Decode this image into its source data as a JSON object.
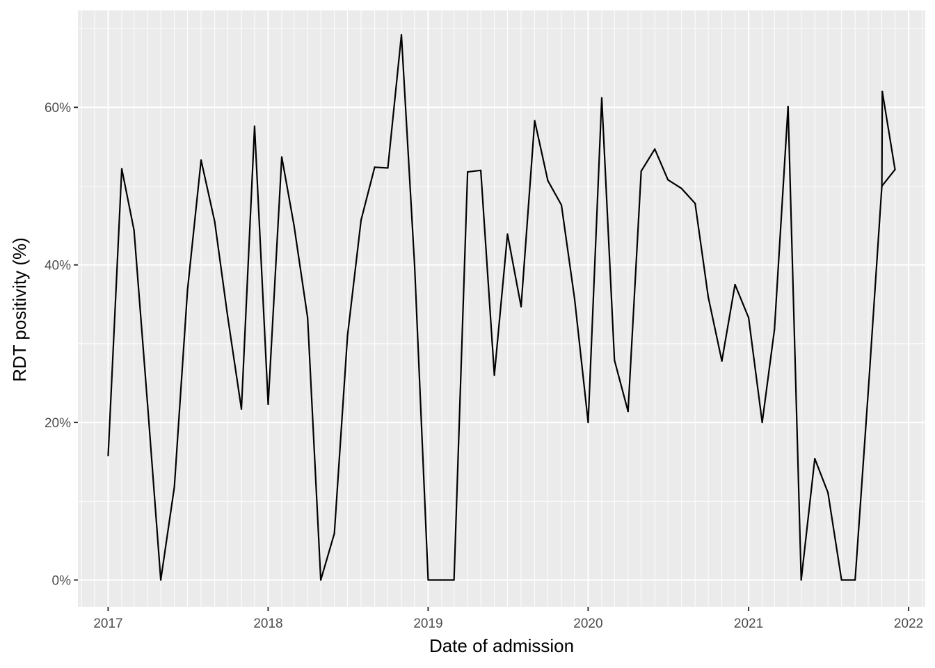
{
  "chart_data": {
    "type": "line",
    "xlabel": "Date of admission",
    "ylabel": "RDT positivity (%)",
    "x_ticks": [
      "2017",
      "2018",
      "2019",
      "2020",
      "2021",
      "2022"
    ],
    "y_ticks": [
      "0%",
      "20%",
      "40%",
      "60%"
    ],
    "y_tick_values": [
      0,
      20,
      40,
      60
    ],
    "xlim": [
      "2016-10-24",
      "2022-02-08"
    ],
    "ylim": [
      -3.4,
      72.3
    ],
    "grid": true,
    "line_color": "#000000",
    "panel_background": "#ebebeb",
    "grid_color": "#ffffff",
    "series": [
      {
        "x": [
          "2017-01",
          "2017-02",
          "2017-03",
          "2017-04",
          "2017-05",
          "2017-06",
          "2017-07",
          "2017-08",
          "2017-09",
          "2017-10",
          "2017-11",
          "2017-12",
          "2018-01",
          "2018-02",
          "2018-03",
          "2018-04",
          "2018-05",
          "2018-06",
          "2018-07",
          "2018-08",
          "2018-09",
          "2018-10",
          "2018-11",
          "2018-12",
          "2019-01",
          "2019-02",
          "2019-03",
          "2019-04",
          "2019-05",
          "2019-06",
          "2019-07",
          "2019-08",
          "2019-09",
          "2019-10",
          "2019-11",
          "2019-12",
          "2020-01",
          "2020-02",
          "2020-03",
          "2020-04",
          "2020-05",
          "2020-06",
          "2020-07",
          "2020-08",
          "2020-09",
          "2020-10",
          "2020-11",
          "2020-12",
          "2021-01",
          "2021-02",
          "2021-03",
          "2021-04",
          "2021-05",
          "2021-06",
          "2021-07",
          "2021-08",
          "2021-09",
          "2021-10",
          "2021-11",
          "2021-12"
        ],
        "values": [
          15.8,
          52.2,
          44.4,
          22.2,
          0.0,
          11.8,
          36.8,
          53.3,
          45.5,
          33.3,
          21.7,
          57.6,
          22.3,
          53.7,
          45.0,
          33.3,
          0.0,
          5.9,
          31.0,
          45.7,
          52.4,
          52.3,
          69.2,
          40.0,
          0.0,
          0.0,
          0.0,
          51.8,
          52.0,
          26.0,
          43.9,
          34.7,
          58.3,
          50.7,
          47.6,
          35.7,
          20.0,
          61.2,
          27.9,
          21.4,
          51.9,
          54.7,
          50.8,
          49.7,
          47.8,
          35.9,
          27.8,
          37.5,
          33.3,
          20.0,
          31.8,
          60.1,
          0.0,
          15.4,
          11.1,
          0.0,
          0.0,
          24.0,
          50.0,
          52.1
        ]
      },
      {
        "x": [
          "2021-11-02"
        ],
        "values": [
          62.0
        ]
      }
    ]
  }
}
